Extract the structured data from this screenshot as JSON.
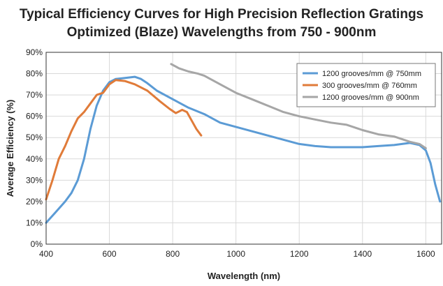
{
  "chart_data": {
    "type": "line",
    "title_lines": [
      "Typical Efficiency Curves for High Precision Reflection Gratings",
      "Optimized (Blaze) Wavelengths from 750 - 900nm"
    ],
    "xlabel": "Wavelength (nm)",
    "ylabel": "Average Efficiency (%)",
    "xlim": [
      400,
      1650
    ],
    "ylim": [
      0,
      90
    ],
    "x_ticks": [
      400,
      600,
      800,
      1000,
      1200,
      1400,
      1600
    ],
    "x_tick_labels": [
      "400",
      "600",
      "800",
      "1000",
      "1200",
      "1400",
      "1600"
    ],
    "y_ticks": [
      0,
      10,
      20,
      30,
      40,
      50,
      60,
      70,
      80,
      90
    ],
    "y_tick_labels": [
      "0%",
      "10%",
      "20%",
      "30%",
      "40%",
      "50%",
      "60%",
      "70%",
      "80%",
      "90%"
    ],
    "grid": true,
    "legend_position": "top-right",
    "series": [
      {
        "name": "1200 grooves/mm @ 750mm",
        "color": "#5b9bd5",
        "points": [
          [
            400,
            10
          ],
          [
            430,
            15
          ],
          [
            460,
            20
          ],
          [
            480,
            24
          ],
          [
            500,
            30
          ],
          [
            520,
            40
          ],
          [
            540,
            54
          ],
          [
            560,
            65
          ],
          [
            580,
            72
          ],
          [
            600,
            76
          ],
          [
            620,
            77.5
          ],
          [
            650,
            78
          ],
          [
            680,
            78.5
          ],
          [
            700,
            77.5
          ],
          [
            720,
            75.5
          ],
          [
            750,
            72
          ],
          [
            800,
            68
          ],
          [
            850,
            64
          ],
          [
            900,
            61
          ],
          [
            950,
            57
          ],
          [
            1000,
            55
          ],
          [
            1050,
            53
          ],
          [
            1100,
            51
          ],
          [
            1150,
            49
          ],
          [
            1200,
            47
          ],
          [
            1250,
            46
          ],
          [
            1300,
            45.5
          ],
          [
            1350,
            45.5
          ],
          [
            1400,
            45.5
          ],
          [
            1450,
            46
          ],
          [
            1500,
            46.5
          ],
          [
            1550,
            47.5
          ],
          [
            1580,
            46.5
          ],
          [
            1600,
            44
          ],
          [
            1615,
            38
          ],
          [
            1630,
            28
          ],
          [
            1645,
            20
          ]
        ]
      },
      {
        "name": "300 grooves/mm @ 760mm",
        "color": "#e07b39",
        "points": [
          [
            400,
            21
          ],
          [
            420,
            30
          ],
          [
            440,
            40
          ],
          [
            460,
            46
          ],
          [
            480,
            53
          ],
          [
            500,
            59
          ],
          [
            520,
            62
          ],
          [
            540,
            66
          ],
          [
            560,
            70
          ],
          [
            580,
            71
          ],
          [
            600,
            75
          ],
          [
            620,
            77
          ],
          [
            650,
            76.5
          ],
          [
            680,
            75
          ],
          [
            720,
            72
          ],
          [
            760,
            67
          ],
          [
            790,
            63.5
          ],
          [
            810,
            61.5
          ],
          [
            830,
            63
          ],
          [
            845,
            62
          ],
          [
            860,
            58
          ],
          [
            875,
            54
          ],
          [
            890,
            51
          ]
        ]
      },
      {
        "name": "1200 grooves/mm @ 900nm",
        "color": "#a6a6a6",
        "points": [
          [
            795,
            84.5
          ],
          [
            820,
            82.5
          ],
          [
            850,
            81
          ],
          [
            880,
            80
          ],
          [
            900,
            79
          ],
          [
            950,
            75
          ],
          [
            1000,
            71
          ],
          [
            1050,
            68
          ],
          [
            1100,
            65
          ],
          [
            1150,
            62
          ],
          [
            1200,
            60
          ],
          [
            1250,
            58.5
          ],
          [
            1300,
            57
          ],
          [
            1350,
            56
          ],
          [
            1400,
            53.5
          ],
          [
            1450,
            51.5
          ],
          [
            1500,
            50.5
          ],
          [
            1550,
            48
          ],
          [
            1580,
            47
          ],
          [
            1600,
            45
          ]
        ]
      }
    ]
  }
}
